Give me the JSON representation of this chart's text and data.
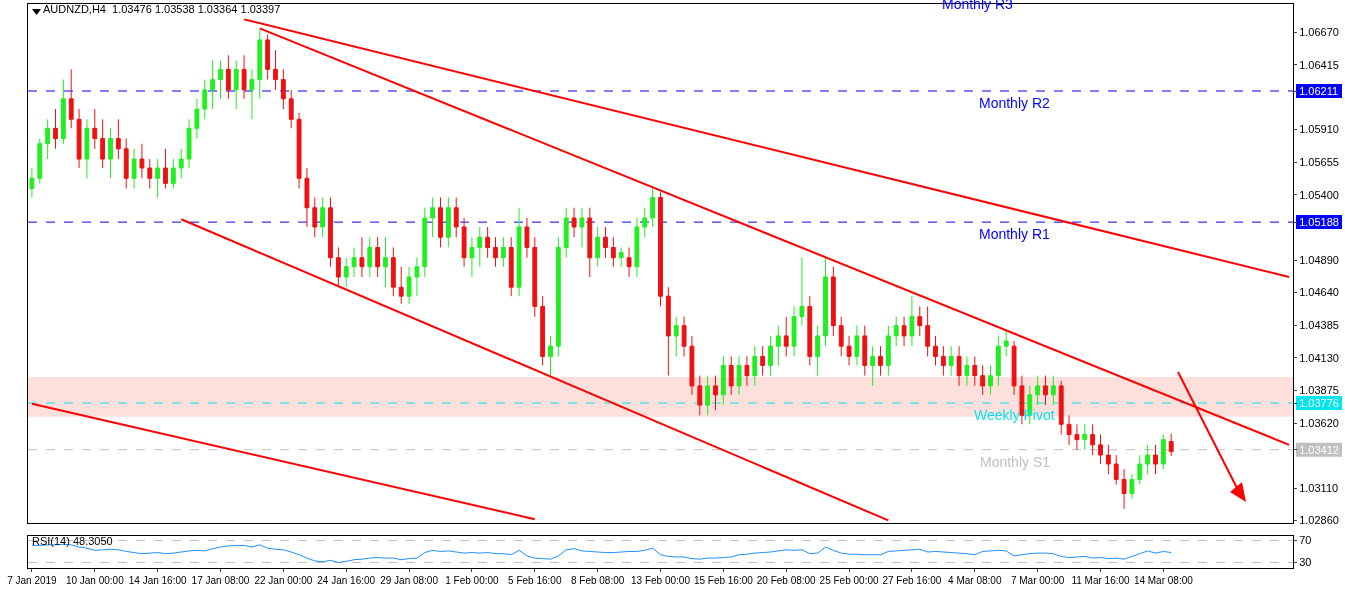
{
  "chart_data": [
    {
      "type": "candlestick",
      "title": "AUDNZD,H4  1.03476 1.03538 1.03364 1.03397",
      "tick_labels": "y",
      "categories": [
        null,
        null,
        null,
        null,
        null,
        null,
        null,
        null,
        null,
        null,
        null,
        null,
        null,
        null,
        null,
        null,
        null,
        null,
        null,
        null,
        null,
        null,
        null,
        null,
        null,
        null,
        null,
        null,
        null,
        null,
        null,
        null,
        null,
        null,
        null,
        null,
        null,
        null,
        null,
        null,
        null,
        null,
        null,
        null,
        null,
        null,
        null,
        null,
        null,
        null,
        null,
        null,
        null,
        null,
        null,
        null,
        null,
        null,
        null,
        null,
        null,
        null,
        null,
        null,
        null,
        null,
        null,
        null,
        null,
        null,
        null,
        null,
        null,
        null,
        null,
        null,
        null,
        null,
        null,
        null,
        null,
        null,
        null,
        null,
        null,
        null,
        null,
        null,
        null,
        null,
        null,
        null,
        null,
        null,
        null,
        null,
        null,
        null,
        null,
        null,
        null,
        null,
        null,
        null,
        null,
        null,
        null,
        null,
        null,
        null,
        null,
        null,
        null,
        null,
        null,
        null,
        null,
        null,
        null,
        null,
        null,
        null,
        null,
        null,
        null,
        null,
        null,
        null,
        null,
        null,
        null,
        null,
        null,
        null,
        null,
        null,
        null,
        null,
        null,
        null,
        null,
        null,
        null,
        null,
        null,
        null,
        null,
        null,
        null,
        null,
        null,
        null,
        null,
        null,
        null,
        null,
        null,
        null,
        null,
        null,
        null
      ],
      "ohlc": [
        [
          1.0545,
          1.0561,
          1.0538,
          1.0553
        ],
        [
          1.0553,
          1.0584,
          1.0549,
          1.058
        ],
        [
          1.058,
          1.0599,
          1.0568,
          1.0592
        ],
        [
          1.0592,
          1.0607,
          1.0576,
          1.0584
        ],
        [
          1.0584,
          1.063,
          1.058,
          1.0615
        ],
        [
          1.0615,
          1.0638,
          1.0592,
          1.0599
        ],
        [
          1.0599,
          1.0607,
          1.0561,
          1.0568
        ],
        [
          1.0568,
          1.0599,
          1.0553,
          1.0592
        ],
        [
          1.0592,
          1.0607,
          1.0576,
          1.0584
        ],
        [
          1.0584,
          1.0599,
          1.0561,
          1.0568
        ],
        [
          1.0568,
          1.0592,
          1.0553,
          1.0584
        ],
        [
          1.0584,
          1.0599,
          1.0568,
          1.0576
        ],
        [
          1.0576,
          1.0584,
          1.0545,
          1.0553
        ],
        [
          1.0553,
          1.0576,
          1.0545,
          1.0568
        ],
        [
          1.0568,
          1.058,
          1.0553,
          1.0561
        ],
        [
          1.0561,
          1.0568,
          1.0545,
          1.0553
        ],
        [
          1.0553,
          1.0568,
          1.0538,
          1.0561
        ],
        [
          1.0561,
          1.0576,
          1.0545,
          1.0549
        ],
        [
          1.0549,
          1.0568,
          1.0545,
          1.0561
        ],
        [
          1.0561,
          1.0576,
          1.0553,
          1.0568
        ],
        [
          1.0568,
          1.0599,
          1.0561,
          1.0592
        ],
        [
          1.0592,
          1.0615,
          1.0584,
          1.0607
        ],
        [
          1.0607,
          1.063,
          1.0599,
          1.0622
        ],
        [
          1.0622,
          1.0645,
          1.0607,
          1.063
        ],
        [
          1.063,
          1.0645,
          1.0615,
          1.0638
        ],
        [
          1.0638,
          1.0649,
          1.0615,
          1.0622
        ],
        [
          1.0622,
          1.0645,
          1.0607,
          1.0638
        ],
        [
          1.0638,
          1.0649,
          1.0615,
          1.0622
        ],
        [
          1.0622,
          1.0638,
          1.0599,
          1.063
        ],
        [
          1.063,
          1.0669,
          1.0615,
          1.0661
        ],
        [
          1.0661,
          1.0665,
          1.063,
          1.0638
        ],
        [
          1.0638,
          1.0653,
          1.0622,
          1.063
        ],
        [
          1.063,
          1.0638,
          1.0607,
          1.0615
        ],
        [
          1.0615,
          1.0622,
          1.0592,
          1.0599
        ],
        [
          1.0599,
          1.0604,
          1.0545,
          1.0553
        ],
        [
          1.0553,
          1.0561,
          1.0515,
          1.053
        ],
        [
          1.053,
          1.0538,
          1.0507,
          1.0515
        ],
        [
          1.0515,
          1.0538,
          1.0507,
          1.053
        ],
        [
          1.053,
          1.0538,
          1.0484,
          1.0491
        ],
        [
          1.0491,
          1.0499,
          1.0468,
          1.0476
        ],
        [
          1.0476,
          1.0491,
          1.0468,
          1.0484
        ],
        [
          1.0484,
          1.0499,
          1.0476,
          1.0491
        ],
        [
          1.0491,
          1.0507,
          1.0476,
          1.0484
        ],
        [
          1.0484,
          1.0507,
          1.0476,
          1.0499
        ],
        [
          1.0499,
          1.0507,
          1.0476,
          1.0484
        ],
        [
          1.0484,
          1.0507,
          1.0468,
          1.0491
        ],
        [
          1.0491,
          1.0499,
          1.0461,
          1.0468
        ],
        [
          1.0468,
          1.0484,
          1.0455,
          1.0461
        ],
        [
          1.0461,
          1.0484,
          1.0455,
          1.0476
        ],
        [
          1.0476,
          1.0491,
          1.0461,
          1.0484
        ],
        [
          1.0484,
          1.053,
          1.0476,
          1.0522
        ],
        [
          1.0522,
          1.0538,
          1.0507,
          1.053
        ],
        [
          1.053,
          1.0538,
          1.0499,
          1.0507
        ],
        [
          1.0507,
          1.0538,
          1.0499,
          1.053
        ],
        [
          1.053,
          1.0538,
          1.0507,
          1.0515
        ],
        [
          1.0515,
          1.0522,
          1.0484,
          1.0491
        ],
        [
          1.0491,
          1.0507,
          1.0476,
          1.0499
        ],
        [
          1.0499,
          1.0515,
          1.0484,
          1.0507
        ],
        [
          1.0507,
          1.0515,
          1.0491,
          1.0499
        ],
        [
          1.0499,
          1.0507,
          1.0484,
          1.0491
        ],
        [
          1.0491,
          1.0507,
          1.0484,
          1.0499
        ],
        [
          1.0499,
          1.0507,
          1.0461,
          1.0468
        ],
        [
          1.0468,
          1.053,
          1.0461,
          1.0515
        ],
        [
          1.0515,
          1.0522,
          1.0491,
          1.0499
        ],
        [
          1.0499,
          1.0507,
          1.0445,
          1.0453
        ],
        [
          1.0453,
          1.0461,
          1.0407,
          1.0414
        ],
        [
          1.0414,
          1.043,
          1.0399,
          1.0422
        ],
        [
          1.0422,
          1.0507,
          1.0414,
          1.0499
        ],
        [
          1.0499,
          1.053,
          1.0491,
          1.0522
        ],
        [
          1.0522,
          1.053,
          1.0507,
          1.0515
        ],
        [
          1.0515,
          1.053,
          1.0499,
          1.0522
        ],
        [
          1.0522,
          1.053,
          1.0476,
          1.0491
        ],
        [
          1.0491,
          1.0515,
          1.0484,
          1.0507
        ],
        [
          1.0507,
          1.0515,
          1.0491,
          1.0499
        ],
        [
          1.0499,
          1.0507,
          1.0484,
          1.0491
        ],
        [
          1.0491,
          1.0499,
          1.0484,
          1.0495
        ],
        [
          1.0491,
          1.0499,
          1.0476,
          1.0484
        ],
        [
          1.0484,
          1.0522,
          1.0476,
          1.0515
        ],
        [
          1.0515,
          1.053,
          1.0507,
          1.0522
        ],
        [
          1.0522,
          1.0545,
          1.0515,
          1.0538
        ],
        [
          1.0538,
          1.0542,
          1.0453,
          1.0461
        ],
        [
          1.0461,
          1.0468,
          1.0399,
          1.043
        ],
        [
          1.043,
          1.0445,
          1.0414,
          1.0438
        ],
        [
          1.0438,
          1.0445,
          1.0414,
          1.0422
        ],
        [
          1.0422,
          1.043,
          1.0384,
          1.0391
        ],
        [
          1.0391,
          1.0399,
          1.0368,
          1.0376
        ],
        [
          1.0376,
          1.0399,
          1.0368,
          1.0391
        ],
        [
          1.0391,
          1.0399,
          1.0372,
          1.0384
        ],
        [
          1.0384,
          1.0414,
          1.0376,
          1.0407
        ],
        [
          1.0407,
          1.0414,
          1.0384,
          1.0391
        ],
        [
          1.0391,
          1.0414,
          1.0384,
          1.0407
        ],
        [
          1.0407,
          1.0414,
          1.0391,
          1.0399
        ],
        [
          1.0399,
          1.0422,
          1.0391,
          1.0414
        ],
        [
          1.0414,
          1.0422,
          1.0399,
          1.0407
        ],
        [
          1.0407,
          1.043,
          1.0399,
          1.0422
        ],
        [
          1.0422,
          1.0438,
          1.0407,
          1.043
        ],
        [
          1.043,
          1.0445,
          1.0414,
          1.0422
        ],
        [
          1.0422,
          1.0453,
          1.0414,
          1.0445
        ],
        [
          1.0445,
          1.0491,
          1.0438,
          1.0453
        ],
        [
          1.0453,
          1.0461,
          1.0407,
          1.0414
        ],
        [
          1.0414,
          1.0438,
          1.0399,
          1.043
        ],
        [
          1.043,
          1.0491,
          1.0422,
          1.0476
        ],
        [
          1.0476,
          1.0484,
          1.043,
          1.0438
        ],
        [
          1.0438,
          1.0445,
          1.0414,
          1.0422
        ],
        [
          1.0422,
          1.043,
          1.0407,
          1.0414
        ],
        [
          1.0414,
          1.0438,
          1.0407,
          1.043
        ],
        [
          1.043,
          1.0438,
          1.0399,
          1.0407
        ],
        [
          1.0407,
          1.0422,
          1.0391,
          1.0414
        ],
        [
          1.0414,
          1.0422,
          1.0399,
          1.0407
        ],
        [
          1.0407,
          1.0438,
          1.0399,
          1.043
        ],
        [
          1.043,
          1.0445,
          1.0422,
          1.0438
        ],
        [
          1.0438,
          1.0445,
          1.0422,
          1.043
        ],
        [
          1.043,
          1.0461,
          1.0422,
          1.0445
        ],
        [
          1.0445,
          1.0453,
          1.043,
          1.0438
        ],
        [
          1.0438,
          1.0453,
          1.0414,
          1.0422
        ],
        [
          1.0422,
          1.043,
          1.0407,
          1.0414
        ],
        [
          1.0414,
          1.0422,
          1.0399,
          1.0407
        ],
        [
          1.0407,
          1.0422,
          1.0399,
          1.0414
        ],
        [
          1.0414,
          1.0422,
          1.0391,
          1.0399
        ],
        [
          1.0399,
          1.0414,
          1.0391,
          1.0407
        ],
        [
          1.0407,
          1.0414,
          1.0391,
          1.0399
        ],
        [
          1.0399,
          1.0407,
          1.0384,
          1.0391
        ],
        [
          1.0391,
          1.0407,
          1.0384,
          1.0399
        ],
        [
          1.0399,
          1.043,
          1.0391,
          1.0422
        ],
        [
          1.0422,
          1.0434,
          1.0414,
          1.0426
        ],
        [
          1.0422,
          1.0426,
          1.0384,
          1.0391
        ],
        [
          1.0391,
          1.0399,
          1.0361,
          1.0368
        ],
        [
          1.0368,
          1.0391,
          1.0361,
          1.0384
        ],
        [
          1.0384,
          1.0399,
          1.0376,
          1.0391
        ],
        [
          1.0391,
          1.0399,
          1.0376,
          1.0384
        ],
        [
          1.0384,
          1.0399,
          1.0376,
          1.0391
        ],
        [
          1.0391,
          1.0395,
          1.0353,
          1.0361
        ],
        [
          1.0361,
          1.0368,
          1.0345,
          1.0353
        ],
        [
          1.0353,
          1.0361,
          1.0341,
          1.0349
        ],
        [
          1.0349,
          1.0361,
          1.0341,
          1.0353
        ],
        [
          1.0353,
          1.0361,
          1.0337,
          1.0345
        ],
        [
          1.0345,
          1.0353,
          1.033,
          1.0337
        ],
        [
          1.0337,
          1.0345,
          1.0322,
          1.033
        ],
        [
          1.033,
          1.0337,
          1.0314,
          1.0318
        ],
        [
          1.0318,
          1.0326,
          1.0295,
          1.0307
        ],
        [
          1.0307,
          1.0322,
          1.0303,
          1.0318
        ],
        [
          1.0318,
          1.0337,
          1.0314,
          1.033
        ],
        [
          1.033,
          1.0345,
          1.0322,
          1.0337
        ],
        [
          1.0337,
          1.0345,
          1.0322,
          1.033
        ],
        [
          1.033,
          1.0353,
          1.0326,
          1.0349
        ],
        [
          1.03476,
          1.03538,
          1.03364,
          1.03397
        ],
        null,
        null,
        null,
        null,
        null,
        null,
        null,
        null,
        null,
        null,
        null,
        null,
        null,
        null,
        null
      ],
      "colors": [
        "#22ee22",
        "#22ee22",
        "#22ee22",
        "#ee1111",
        "#22ee22",
        "#ee1111",
        "#ee1111",
        "#22ee22",
        "#ee1111",
        "#ee1111",
        "#22ee22",
        "#ee1111",
        "#ee1111",
        "#22ee22",
        "#ee1111",
        "#ee1111",
        "#22ee22",
        "#ee1111",
        "#22ee22",
        "#22ee22",
        "#22ee22",
        "#22ee22",
        "#22ee22",
        "#22ee22",
        "#22ee22",
        "#ee1111",
        "#22ee22",
        "#ee1111",
        "#22ee22",
        "#22ee22",
        "#ee1111",
        "#ee1111",
        "#ee1111",
        "#ee1111",
        "#ee1111",
        "#ee1111",
        "#ee1111",
        "#22ee22",
        "#ee1111",
        "#ee1111",
        "#22ee22",
        "#22ee22",
        "#ee1111",
        "#22ee22",
        "#ee1111",
        "#22ee22",
        "#ee1111",
        "#ee1111",
        "#22ee22",
        "#22ee22",
        "#22ee22",
        "#22ee22",
        "#ee1111",
        "#22ee22",
        "#ee1111",
        "#ee1111",
        "#22ee22",
        "#22ee22",
        "#ee1111",
        "#ee1111",
        "#22ee22",
        "#ee1111",
        "#22ee22",
        "#ee1111",
        "#ee1111",
        "#ee1111",
        "#22ee22",
        "#22ee22",
        "#22ee22",
        "#ee1111",
        "#22ee22",
        "#ee1111",
        "#22ee22",
        "#ee1111",
        "#ee1111",
        "#22ee22",
        "#ee1111",
        "#22ee22",
        "#22ee22",
        "#22ee22",
        "#ee1111",
        "#ee1111",
        "#22ee22",
        "#ee1111",
        "#ee1111",
        "#ee1111",
        "#22ee22",
        "#ee1111",
        "#22ee22",
        "#ee1111",
        "#22ee22",
        "#ee1111",
        "#22ee22",
        "#ee1111",
        "#22ee22",
        "#22ee22",
        "#ee1111",
        "#22ee22",
        "#22ee22",
        "#ee1111",
        "#22ee22",
        "#22ee22",
        "#ee1111",
        "#ee1111",
        "#ee1111",
        "#22ee22",
        "#ee1111",
        "#22ee22",
        "#ee1111",
        "#22ee22",
        "#22ee22",
        "#ee1111",
        "#22ee22",
        "#ee1111",
        "#ee1111",
        "#ee1111",
        "#ee1111",
        "#22ee22",
        "#ee1111",
        "#22ee22",
        "#ee1111",
        "#ee1111",
        "#22ee22",
        "#22ee22",
        "#22ee22",
        "#ee1111",
        "#ee1111",
        "#22ee22",
        "#22ee22",
        "#ee1111",
        "#22ee22",
        "#ee1111",
        "#ee1111",
        "#ee1111",
        "#22ee22",
        "#ee1111",
        "#ee1111",
        "#ee1111",
        "#ee1111",
        "#ee1111",
        "#22ee22",
        "#22ee22",
        "#22ee22",
        "#ee1111",
        "#22ee22",
        "#ee1111",
        null,
        null,
        null,
        null,
        null,
        null,
        null,
        null,
        null,
        null,
        null,
        null,
        null,
        null,
        null
      ],
      "ylim": [
        1.0284,
        1.0689
      ],
      "yticks": [
        {
          "value": 1.0286,
          "label": "1.02860"
        },
        {
          "value": 1.0311,
          "label": "1.03110"
        },
        {
          "value": 1.03412,
          "label": "1.03412"
        },
        {
          "value": 1.03776,
          "label": "1.03776"
        },
        {
          "value": 1.05188,
          "label": "1.05188"
        },
        {
          "value": 1.06211,
          "label": "1.06211"
        },
        {
          "value": 1.0362,
          "label": "1.03620"
        },
        {
          "value": 1.03875,
          "label": "1.03875"
        },
        {
          "value": 1.0413,
          "label": "1.04130"
        },
        {
          "value": 1.04385,
          "label": "1.04385"
        },
        {
          "value": 1.0464,
          "label": "1.04640"
        },
        {
          "value": 1.0489,
          "label": "1.04890"
        },
        {
          "value": 1.054,
          "label": "1.05400"
        },
        {
          "value": 1.05655,
          "label": "1.05655"
        },
        {
          "value": 1.0591,
          "label": "1.05910"
        },
        {
          "value": 1.06415,
          "label": "1.06415"
        },
        {
          "value": 1.0667,
          "label": "1.06670"
        }
      ],
      "series": [
        {
          "type": "line",
          "color": "#ff0000",
          "values": [
            null,
            null,
            null,
            null,
            null,
            null,
            null,
            null,
            null,
            null,
            null,
            null,
            null,
            null,
            null,
            null,
            null,
            null,
            null,
            null,
            null,
            null,
            null,
            null,
            null,
            null,
            null,
            1.0677,
            null,
            null,
            null,
            null,
            null,
            null,
            null,
            null,
            null,
            null,
            null,
            null,
            null,
            null,
            null,
            null,
            null,
            null,
            null,
            null,
            null,
            null,
            null,
            null,
            null,
            null,
            null,
            null,
            null,
            null,
            null,
            null,
            null,
            null,
            null,
            null,
            null,
            null,
            null,
            null,
            null,
            null,
            null,
            null,
            null,
            null,
            null,
            null,
            null,
            null,
            null,
            null,
            null,
            null,
            null,
            null,
            null,
            null,
            null,
            null,
            null,
            null,
            null,
            null,
            null,
            null,
            null,
            null,
            null,
            null,
            null,
            null,
            null,
            null,
            null,
            null,
            null,
            null,
            null,
            null,
            null,
            null,
            null,
            null,
            null,
            null,
            null,
            null,
            null,
            null,
            null,
            null,
            null,
            null,
            null,
            null,
            null,
            null,
            null,
            null,
            null,
            null,
            null,
            null,
            null,
            null,
            null,
            null,
            null,
            null,
            null,
            null,
            null,
            null,
            null,
            null,
            null,
            null,
            null,
            null,
            null,
            null,
            null,
            null,
            null,
            null,
            null,
            null,
            null,
            null,
            null,
            null,
            1.0476
          ]
        },
        {
          "type": "line",
          "color": "#ff0000",
          "values": [
            null,
            null,
            null,
            null,
            null,
            null,
            null,
            null,
            null,
            null,
            null,
            null,
            null,
            null,
            null,
            null,
            null,
            null,
            null,
            null,
            null,
            null,
            null,
            null,
            null,
            null,
            null,
            null,
            null,
            1.067,
            null,
            null,
            null,
            null,
            null,
            null,
            null,
            null,
            null,
            null,
            null,
            null,
            null,
            null,
            null,
            null,
            null,
            null,
            null,
            null,
            null,
            null,
            null,
            null,
            null,
            null,
            null,
            null,
            null,
            null,
            null,
            null,
            null,
            null,
            null,
            null,
            null,
            null,
            null,
            null,
            null,
            null,
            null,
            null,
            null,
            null,
            null,
            null,
            null,
            null,
            null,
            null,
            null,
            null,
            null,
            null,
            null,
            null,
            null,
            null,
            null,
            null,
            null,
            null,
            null,
            null,
            null,
            null,
            null,
            null,
            null,
            null,
            null,
            null,
            null,
            null,
            null,
            null,
            null,
            null,
            null,
            null,
            null,
            null,
            null,
            null,
            null,
            null,
            null,
            null,
            null,
            null,
            null,
            null,
            null,
            null,
            null,
            null,
            null,
            null,
            null,
            null,
            null,
            null,
            null,
            null,
            null,
            null,
            null,
            null,
            null,
            null,
            null,
            null,
            null,
            null,
            null,
            null,
            null,
            null,
            null,
            null,
            null,
            null,
            null,
            null,
            null,
            null,
            null,
            null,
            1.0345
          ]
        },
        {
          "type": "line",
          "color": "#ff0000",
          "values": [
            null,
            null,
            null,
            null,
            null,
            null,
            null,
            null,
            null,
            null,
            null,
            null,
            null,
            null,
            null,
            null,
            null,
            null,
            null,
            1.0521,
            null,
            null,
            null,
            null,
            null,
            null,
            null,
            null,
            null,
            null,
            null,
            null,
            null,
            null,
            null,
            null,
            null,
            null,
            null,
            null,
            null,
            null,
            null,
            null,
            null,
            null,
            null,
            null,
            null,
            null,
            null,
            null,
            null,
            null,
            null,
            null,
            null,
            null,
            null,
            null,
            null,
            null,
            null,
            null,
            null,
            null,
            null,
            null,
            null,
            null,
            null,
            null,
            null,
            null,
            null,
            null,
            null,
            null,
            null,
            null,
            null,
            null,
            null,
            null,
            null,
            null,
            null,
            null,
            null,
            null,
            null,
            null,
            null,
            null,
            null,
            null,
            null,
            null,
            null,
            null,
            null,
            null,
            null,
            null,
            null,
            null,
            null,
            null,
            null,
            1.0286,
            null,
            null,
            null,
            null,
            null,
            null,
            null,
            null,
            null,
            null,
            null,
            null,
            null,
            null,
            null,
            null,
            null,
            null,
            null,
            null,
            null,
            null,
            null,
            null,
            null,
            null,
            null,
            null,
            null,
            null,
            null,
            null,
            null,
            null,
            null,
            null,
            null,
            null,
            null,
            null,
            null,
            null,
            null,
            null,
            null,
            null,
            null,
            null,
            null,
            null,
            null
          ]
        },
        {
          "type": "line",
          "color": "#ff0000",
          "values": [
            1.0377,
            null,
            null,
            null,
            null,
            null,
            null,
            null,
            null,
            null,
            null,
            null,
            null,
            null,
            null,
            null,
            null,
            null,
            null,
            null,
            null,
            null,
            null,
            null,
            null,
            null,
            null,
            null,
            null,
            null,
            null,
            null,
            null,
            null,
            null,
            null,
            null,
            null,
            null,
            null,
            null,
            null,
            null,
            null,
            null,
            null,
            null,
            null,
            null,
            null,
            null,
            null,
            null,
            null,
            null,
            null,
            null,
            null,
            null,
            null,
            null,
            null,
            null,
            null,
            1.0287,
            null,
            null,
            null,
            null,
            null,
            null,
            null,
            null,
            null,
            null,
            null,
            null,
            null,
            null,
            null,
            null,
            null,
            null,
            null,
            null,
            null,
            null,
            null,
            null,
            null,
            null,
            null,
            null,
            null,
            null,
            null,
            null,
            null,
            null,
            null,
            null,
            null,
            null,
            null,
            null,
            null,
            null,
            null,
            null,
            null,
            null,
            null,
            null,
            null,
            null,
            null,
            null,
            null,
            null,
            null,
            null,
            null,
            null,
            null,
            null,
            null,
            null,
            null,
            null,
            null,
            null,
            null,
            null,
            null,
            null,
            null,
            null,
            null,
            null,
            null,
            null,
            null,
            null,
            null,
            null,
            null,
            null,
            null,
            null,
            null,
            null,
            null,
            null,
            null,
            null,
            null,
            null,
            null,
            null,
            null,
            null
          ]
        }
      ],
      "ref_lines": [
        {
          "axis": "y",
          "value": 1.06211,
          "label": "Monthly R2",
          "color": "#0000ff",
          "line_style": "dashed"
        },
        {
          "axis": "y",
          "value": 1.05188,
          "label": "Monthly R1",
          "color": "#0000ff",
          "line_style": "dashed"
        },
        {
          "axis": "y",
          "value": 1.03776,
          "label": "Weekly Pivot",
          "color": "#00e5ee",
          "line_style": "dashed"
        },
        {
          "axis": "y",
          "value": 1.03412,
          "label": "Monthly S1",
          "color": "#c0c0c0",
          "line_style": "dashed"
        }
      ],
      "bands": [
        {
          "axis": "y",
          "from": 1.0367,
          "to": 1.0398,
          "color": "#fde0dc"
        }
      ],
      "annotations": [
        "Monthly R3"
      ]
    },
    {
      "type": "line",
      "title": "RSI(14) 48.3050",
      "categories": [
        "7 Jan 2019",
        null,
        null,
        null,
        null,
        null,
        null,
        null,
        "10 Jan 00:00",
        null,
        null,
        null,
        null,
        null,
        null,
        null,
        "14 Jan 16:00",
        null,
        null,
        null,
        null,
        null,
        null,
        null,
        "17 Jan 08:00",
        null,
        null,
        null,
        null,
        null,
        null,
        null,
        "22 Jan 00:00",
        null,
        null,
        null,
        null,
        null,
        null,
        null,
        "24 Jan 16:00",
        null,
        null,
        null,
        null,
        null,
        null,
        null,
        "29 Jan 08:00",
        null,
        null,
        null,
        null,
        null,
        null,
        null,
        "1 Feb 00:00",
        null,
        null,
        null,
        null,
        null,
        null,
        null,
        "5 Feb 16:00",
        null,
        null,
        null,
        null,
        null,
        null,
        null,
        "8 Feb 08:00",
        null,
        null,
        null,
        null,
        null,
        null,
        null,
        "13 Feb 00:00",
        null,
        null,
        null,
        null,
        null,
        null,
        null,
        "15 Feb 16:00",
        null,
        null,
        null,
        null,
        null,
        null,
        null,
        "20 Feb 08:00",
        null,
        null,
        null,
        null,
        null,
        null,
        null,
        "25 Feb 00:00",
        null,
        null,
        null,
        null,
        null,
        null,
        null,
        "27 Feb 16:00",
        null,
        null,
        null,
        null,
        null,
        null,
        null,
        "4 Mar 08:00",
        null,
        null,
        null,
        null,
        null,
        null,
        null,
        "7 Mar 00:00",
        null,
        null,
        null,
        null,
        null,
        null,
        null,
        "11 Mar 16:00",
        null,
        null,
        null,
        null,
        null,
        null,
        null,
        "14 Mar 08:00",
        null,
        null,
        null,
        null,
        null,
        null,
        null,
        null,
        null,
        null,
        null,
        null,
        null,
        null,
        null,
        null
      ],
      "series": [
        {
          "color": "#1e90ff",
          "values": [
            61,
            61,
            62,
            62,
            63,
            62,
            58,
            56,
            52,
            53,
            54,
            53,
            50,
            48,
            46,
            47,
            48,
            46,
            47,
            49,
            51,
            52,
            51,
            55,
            58,
            60,
            61,
            61,
            58,
            62,
            56,
            54,
            53,
            49,
            44,
            38,
            33,
            31,
            34,
            30,
            32,
            35,
            36,
            38,
            39,
            38,
            38,
            35,
            37,
            38,
            48,
            52,
            50,
            51,
            49,
            47,
            48,
            47,
            48,
            46,
            46,
            44,
            52,
            42,
            38,
            37,
            36,
            42,
            53,
            55,
            51,
            50,
            49,
            48,
            48,
            49,
            50,
            50,
            52,
            56,
            44,
            41,
            40,
            40,
            37,
            36,
            38,
            38,
            39,
            40,
            44,
            45,
            47,
            48,
            49,
            51,
            53,
            52,
            53,
            46,
            47,
            58,
            52,
            47,
            45,
            45,
            44,
            44,
            44,
            50,
            51,
            52,
            53,
            54,
            49,
            50,
            49,
            48,
            47,
            46,
            44,
            50,
            51,
            52,
            51,
            42,
            44,
            46,
            47,
            47,
            46,
            41,
            39,
            40,
            41,
            38,
            39,
            37,
            38,
            36,
            41,
            46,
            51,
            47,
            50,
            48,
            null,
            null,
            null,
            null,
            null,
            null,
            null,
            null,
            null,
            null,
            null,
            null,
            null,
            null,
            null
          ]
        }
      ],
      "ylim": [
        20,
        78
      ],
      "yticks": [
        30,
        70
      ],
      "ref_lines": [
        {
          "axis": "y",
          "value": 30,
          "color": "#c0c0c0",
          "line_style": "dashed"
        },
        {
          "axis": "y",
          "value": 70,
          "color": "#c0c0c0",
          "line_style": "dashed"
        }
      ]
    }
  ]
}
